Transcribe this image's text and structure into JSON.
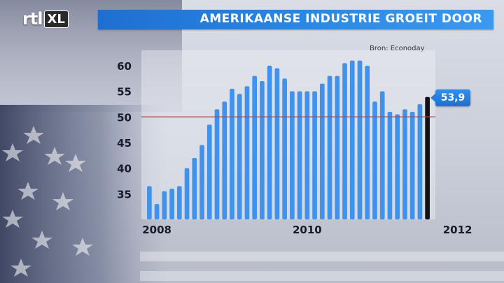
{
  "header": {
    "logo_rtl": "rtl",
    "logo_xl": "XL",
    "title": "AMERIKAANSE INDUSTRIE GROEIT DOOR"
  },
  "source_note": "Bron: Econoday",
  "colors": {
    "title_bar": "#2b8be8",
    "bars": "#3f93ee",
    "last_bar": "#111111",
    "threshold_line": "#e0302a",
    "callout": "#2a86e8"
  },
  "chart_data": {
    "type": "bar",
    "title": "AMERIKAANSE INDUSTRIE GROEIT DOOR",
    "xlabel": "",
    "ylabel": "",
    "ylim": [
      30,
      63
    ],
    "yticks": [
      35,
      40,
      45,
      50,
      55,
      60
    ],
    "xtick_labels": [
      {
        "label": "2008",
        "index": 1
      },
      {
        "label": "2010",
        "index": 21
      },
      {
        "label": "2012",
        "index": 41
      }
    ],
    "reference_line": 50,
    "values": [
      36.5,
      33,
      35.5,
      36,
      36.5,
      40,
      42,
      44.5,
      48.5,
      51.5,
      53,
      55.5,
      54.5,
      56,
      58,
      57,
      60,
      59.5,
      57.5,
      55,
      55,
      55,
      55,
      56.5,
      58,
      58,
      60.5,
      61,
      61,
      60,
      53,
      55,
      51,
      50.5,
      51.5,
      51,
      52.5,
      53.9
    ],
    "last_value_label": "53,9",
    "grid": false
  }
}
